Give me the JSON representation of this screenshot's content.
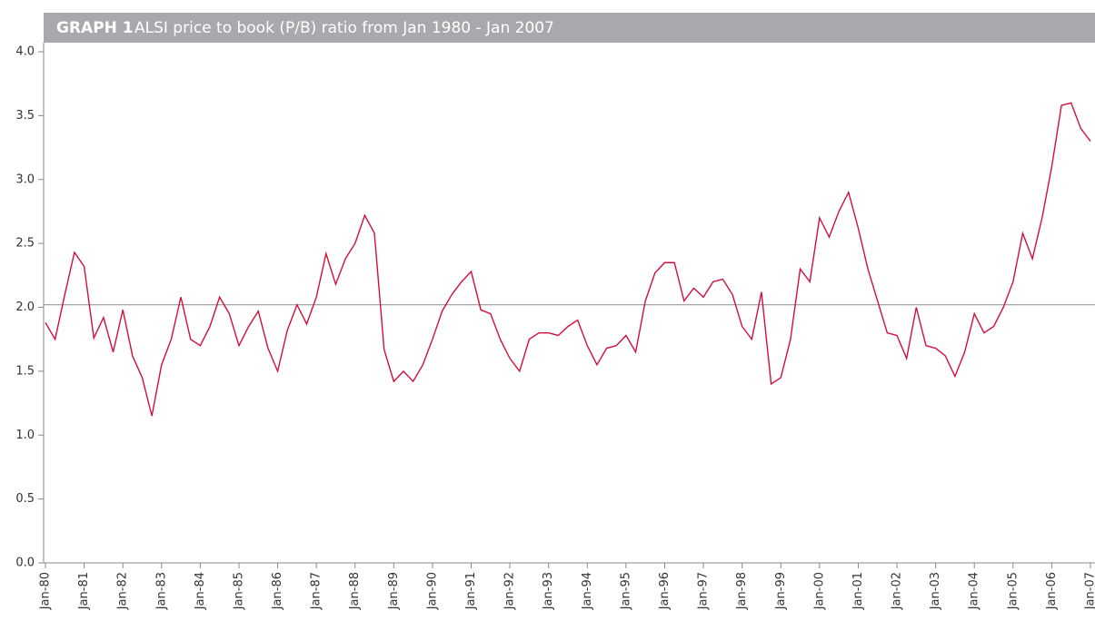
{
  "chart_data": {
    "type": "line",
    "title_label": "GRAPH 1",
    "title": "ALSI price to book (P/B) ratio from Jan 1980 - Jan 2007",
    "categories": [
      "Jan-80",
      null,
      null,
      null,
      "Jan-81",
      null,
      null,
      null,
      "Jan-82",
      null,
      null,
      null,
      "Jan-83",
      null,
      null,
      null,
      "Jan-84",
      null,
      null,
      null,
      "Jan-85",
      null,
      null,
      null,
      "Jan-86",
      null,
      null,
      null,
      "Jan-87",
      null,
      null,
      null,
      "Jan-88",
      null,
      null,
      null,
      "Jan-89",
      null,
      null,
      null,
      "Jan-90",
      null,
      null,
      null,
      "Jan-91",
      null,
      null,
      null,
      "Jan-92",
      null,
      null,
      null,
      "Jan-93",
      null,
      null,
      null,
      "Jan-94",
      null,
      null,
      null,
      "Jan-95",
      null,
      null,
      null,
      "Jan-96",
      null,
      null,
      null,
      "Jan-97",
      null,
      null,
      null,
      "Jan-98",
      null,
      null,
      null,
      "Jan-99",
      null,
      null,
      null,
      "Jan-00",
      null,
      null,
      null,
      "Jan-01",
      null,
      null,
      null,
      "Jan-02",
      null,
      null,
      null,
      "Jan-03",
      null,
      null,
      null,
      "Jan-04",
      null,
      null,
      null,
      "Jan-05",
      null,
      null,
      null,
      "Jan-06",
      null,
      null,
      null,
      "Jan-07"
    ],
    "values": [
      1.88,
      1.75,
      2.1,
      2.43,
      2.32,
      1.76,
      1.92,
      1.65,
      1.98,
      1.62,
      1.45,
      1.15,
      1.55,
      1.75,
      2.08,
      1.75,
      1.7,
      1.85,
      2.08,
      1.95,
      1.7,
      1.85,
      1.97,
      1.68,
      1.5,
      1.82,
      2.02,
      1.87,
      2.08,
      2.42,
      2.18,
      2.38,
      2.5,
      2.72,
      2.58,
      1.67,
      1.42,
      1.5,
      1.42,
      1.55,
      1.75,
      1.97,
      2.1,
      2.2,
      2.28,
      1.98,
      1.95,
      1.75,
      1.6,
      1.5,
      1.75,
      1.8,
      1.8,
      1.78,
      1.85,
      1.9,
      1.7,
      1.55,
      1.68,
      1.7,
      1.78,
      1.65,
      2.05,
      2.27,
      2.35,
      2.35,
      2.05,
      2.15,
      2.08,
      2.2,
      2.22,
      2.1,
      1.85,
      1.75,
      2.12,
      1.4,
      1.45,
      1.75,
      2.3,
      2.2,
      2.7,
      2.55,
      2.75,
      2.9,
      2.62,
      2.3,
      2.05,
      1.8,
      1.78,
      1.6,
      2.0,
      1.7,
      1.68,
      1.62,
      1.46,
      1.65,
      1.95,
      1.8,
      1.85,
      2.0,
      2.2,
      2.58,
      2.38,
      2.7,
      3.1,
      3.58,
      3.6,
      3.4,
      3.3
    ],
    "color": "#d0103a",
    "reference_line": 2.02,
    "reference_color": "#999999",
    "ylim": [
      0,
      4
    ],
    "yticks": [
      {
        "value": 0,
        "label": "0.0"
      },
      {
        "value": 0.5,
        "label": "0.5"
      },
      {
        "value": 1,
        "label": "1.0"
      },
      {
        "value": 1.5,
        "label": "1.5"
      },
      {
        "value": 2,
        "label": "2.0"
      },
      {
        "value": 2.5,
        "label": "2.5"
      },
      {
        "value": 3,
        "label": "3.0"
      },
      {
        "value": 3.5,
        "label": "3.5"
      },
      {
        "value": 4,
        "label": "4.0"
      }
    ]
  }
}
